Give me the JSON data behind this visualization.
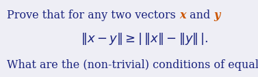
{
  "bg_color": "#eeeef5",
  "text_color": "#1a237e",
  "orange_color": "#cc5500",
  "line1_normal": "Prove that for any two vectors ",
  "line1_x": "x",
  "line1_mid": " and ",
  "line1_y": "y",
  "line2_formula": "$\\|\\mathbf{\\mathit{x}} - \\mathbf{\\mathit{y}}\\| \\geq |\\,\\|\\mathbf{\\mathit{x}}\\| - \\|\\mathbf{\\mathit{y}}\\|\\,|.$",
  "line3": "What are the (non-trivial) conditions of equality?",
  "fontsize": 11.5,
  "fontsize_formula": 13.0,
  "fig_width": 3.77,
  "fig_height": 1.14,
  "dpi": 100
}
